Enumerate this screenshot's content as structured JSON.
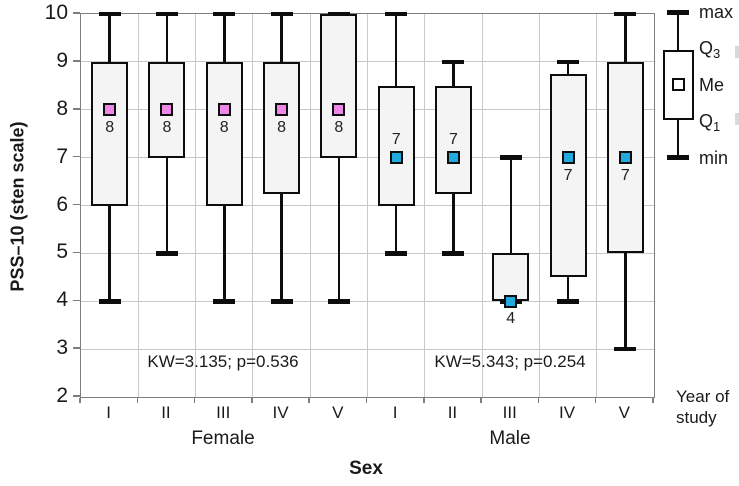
{
  "y_axis": {
    "title": "PSS–10 (sten scale)",
    "ticks": [
      10,
      9,
      8,
      7,
      6,
      5,
      4,
      3,
      2
    ],
    "min": 2,
    "max": 10
  },
  "x_axis": {
    "title": "Sex",
    "secondary_title": "Year of study",
    "group_labels": {
      "female": "Female",
      "male": "Male"
    }
  },
  "annotations": {
    "female": "KW=3.135; p=0.536",
    "male": "KW=5.343; p=0.254"
  },
  "legend": {
    "max": "max",
    "q3": {
      "base": "Q",
      "sub": "3"
    },
    "me": "Me",
    "q1": {
      "base": "Q",
      "sub": "1"
    },
    "min": "min"
  },
  "colors": {
    "female_median": "#ee87e8",
    "male_median": "#22a9dd",
    "box_fill": "#f4f4f4",
    "grid": "#c9c9c9",
    "frame": "#7e7e7e"
  },
  "chart_data": {
    "type": "boxplot",
    "title": "",
    "xlabel": "Sex",
    "ylabel": "PSS–10 (sten scale)",
    "ylim": [
      2,
      10
    ],
    "groups": [
      "Female",
      "Male"
    ],
    "categories": [
      "I",
      "II",
      "III",
      "IV",
      "V"
    ],
    "series": [
      {
        "group": "Female",
        "year": "I",
        "min": 4,
        "q1": 6,
        "median": 8,
        "q3": 9,
        "max": 10,
        "median_label": "8",
        "label_position": "below"
      },
      {
        "group": "Female",
        "year": "II",
        "min": 5,
        "q1": 7,
        "median": 8,
        "q3": 9,
        "max": 10,
        "median_label": "8",
        "label_position": "below"
      },
      {
        "group": "Female",
        "year": "III",
        "min": 4,
        "q1": 6,
        "median": 8,
        "q3": 9,
        "max": 10,
        "median_label": "8",
        "label_position": "below"
      },
      {
        "group": "Female",
        "year": "IV",
        "min": 4,
        "q1": 6.25,
        "median": 8,
        "q3": 9,
        "max": 10,
        "median_label": "8",
        "label_position": "below"
      },
      {
        "group": "Female",
        "year": "V",
        "min": 4,
        "q1": 7,
        "median": 8,
        "q3": 10,
        "max": 10,
        "median_label": "8",
        "label_position": "below"
      },
      {
        "group": "Male",
        "year": "I",
        "min": 5,
        "q1": 6,
        "median": 7,
        "q3": 8.5,
        "max": 10,
        "median_label": "7",
        "label_position": "above"
      },
      {
        "group": "Male",
        "year": "II",
        "min": 5,
        "q1": 6.25,
        "median": 7,
        "q3": 8.5,
        "max": 9,
        "median_label": "7",
        "label_position": "above"
      },
      {
        "group": "Male",
        "year": "III",
        "min": 4,
        "q1": 4,
        "median": 4,
        "q3": 5,
        "max": 7,
        "median_label": "4",
        "label_position": "below"
      },
      {
        "group": "Male",
        "year": "IV",
        "min": 4,
        "q1": 4.5,
        "median": 7,
        "q3": 8.75,
        "max": 9,
        "median_label": "7",
        "label_position": "below"
      },
      {
        "group": "Male",
        "year": "V",
        "min": 3,
        "q1": 5,
        "median": 7,
        "q3": 9,
        "max": 10,
        "median_label": "7",
        "label_position": "below"
      }
    ],
    "legend_items": [
      "max",
      "Q3",
      "Me",
      "Q1",
      "min"
    ],
    "grid": "on",
    "legend_position": "top-right"
  }
}
